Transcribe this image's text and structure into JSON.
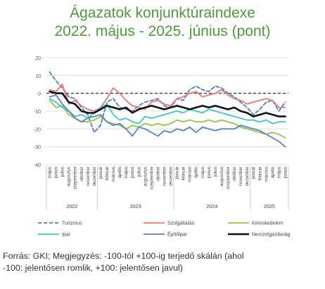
{
  "header": {
    "title_line1": "Ágazatok konjunktúraindexe",
    "title_line2": "2022. május - 2025. június (pont)"
  },
  "footnote": {
    "line1": "Forrás: GKI; Megjegyzés: -100-tól +100-ig terjedő skálán (ahol",
    "line2": "-100: jelentősen romlik, +100: jelentősen javul)"
  },
  "chart_data": {
    "type": "line",
    "ylim": [
      -40,
      20
    ],
    "yticks": [
      20,
      10,
      0,
      -10,
      -20,
      -30,
      -40
    ],
    "grid": true,
    "legend_position": "bottom",
    "reference_line": {
      "y": 0,
      "style": "dashed",
      "color": "#222222"
    },
    "x": [
      "május",
      "június",
      "július",
      "augusztus",
      "szeptember",
      "október",
      "november",
      "december",
      "január",
      "február",
      "március",
      "április",
      "május",
      "június",
      "július",
      "augusztus",
      "szeptember",
      "október",
      "november",
      "december",
      "január",
      "február",
      "március",
      "április",
      "május",
      "június",
      "július",
      "augusztus",
      "szeptember",
      "október",
      "november",
      "december",
      "január",
      "február",
      "március",
      "április",
      "május",
      "június"
    ],
    "year_groups": [
      {
        "label": "2022",
        "start": 0,
        "end": 7
      },
      {
        "label": "2023",
        "start": 8,
        "end": 19
      },
      {
        "label": "2024",
        "start": 20,
        "end": 31
      },
      {
        "label": "2025",
        "start": 32,
        "end": 37
      }
    ],
    "series": [
      {
        "name": "Turizmus",
        "color": "#4f7fc4",
        "dashed": true,
        "width": 1.8,
        "values": [
          12,
          7,
          3,
          -2,
          -3,
          -8,
          -12,
          -22,
          -18,
          -5,
          -3,
          -8,
          -9,
          -10,
          -7,
          -5,
          -4,
          -3,
          -7,
          -8,
          -3,
          -4,
          2,
          4,
          2,
          1,
          4,
          3,
          0,
          -2,
          -5,
          -8,
          -12,
          -9,
          -5,
          -4,
          -10,
          -5
        ]
      },
      {
        "name": "Szolgáltatás",
        "color": "#e8787a",
        "dashed": false,
        "width": 1.8,
        "values": [
          2,
          1,
          5,
          -6,
          -4,
          -7,
          -9,
          -10,
          -8,
          -3,
          3,
          0,
          -4,
          -7,
          -8,
          -9,
          -5,
          -4,
          -6,
          -7,
          -3,
          -2,
          0,
          1,
          -2,
          -1,
          0,
          2,
          -1,
          -3,
          -4,
          -6,
          -5,
          -4,
          -3,
          -4,
          -8,
          -8
        ]
      },
      {
        "name": "Kereskedelem",
        "color": "#92c83e",
        "dashed": false,
        "width": 1.8,
        "values": [
          -4,
          -8,
          -7,
          -12,
          -14,
          -16,
          -16,
          -15,
          -13,
          -16,
          -17,
          -18,
          -20,
          -18,
          -19,
          -17,
          -18,
          -17,
          -18,
          -17,
          -15,
          -16,
          -15,
          -16,
          -16,
          -15,
          -16,
          -15,
          -16,
          -17,
          -19,
          -20,
          -21,
          -22,
          -23,
          -22,
          -23,
          -25
        ]
      },
      {
        "name": "Ipar",
        "color": "#3ec7c7",
        "dashed": false,
        "width": 1.8,
        "values": [
          -3,
          -5,
          -8,
          -10,
          -13,
          -12,
          -14,
          -11,
          -8,
          -6,
          -12,
          -15,
          -14,
          -16,
          -17,
          -13,
          -14,
          -13,
          -12,
          -11,
          -10,
          -11,
          -9,
          -10,
          -11,
          -9,
          -10,
          -11,
          -12,
          -13,
          -14,
          -15,
          -15,
          -16,
          -15,
          -17,
          -16,
          -16
        ]
      },
      {
        "name": "Építőipar",
        "color": "#5a7fc8",
        "dashed": false,
        "width": 1.8,
        "values": [
          -2,
          -1,
          -6,
          -10,
          -14,
          -16,
          -14,
          -13,
          -12,
          -16,
          -18,
          -17,
          -20,
          -24,
          -19,
          -20,
          -22,
          -24,
          -21,
          -22,
          -20,
          -21,
          -19,
          -22,
          -19,
          -20,
          -21,
          -20,
          -20,
          -20,
          -18,
          -19,
          -20,
          -21,
          -23,
          -25,
          -27,
          -30
        ]
      },
      {
        "name": "Nemzetgazdaság",
        "color": "#111111",
        "dashed": false,
        "width": 2.6,
        "values": [
          1,
          0,
          0,
          -5,
          -6,
          -10,
          -11,
          -11,
          -9,
          -7,
          -8,
          -9,
          -8,
          -11,
          -9,
          -8,
          -7,
          -8,
          -9,
          -8,
          -7,
          -8,
          -9,
          -8,
          -7,
          -8,
          -7,
          -8,
          -9,
          -8,
          -10,
          -11,
          -13,
          -12,
          -11,
          -12,
          -13,
          -13
        ]
      }
    ]
  }
}
